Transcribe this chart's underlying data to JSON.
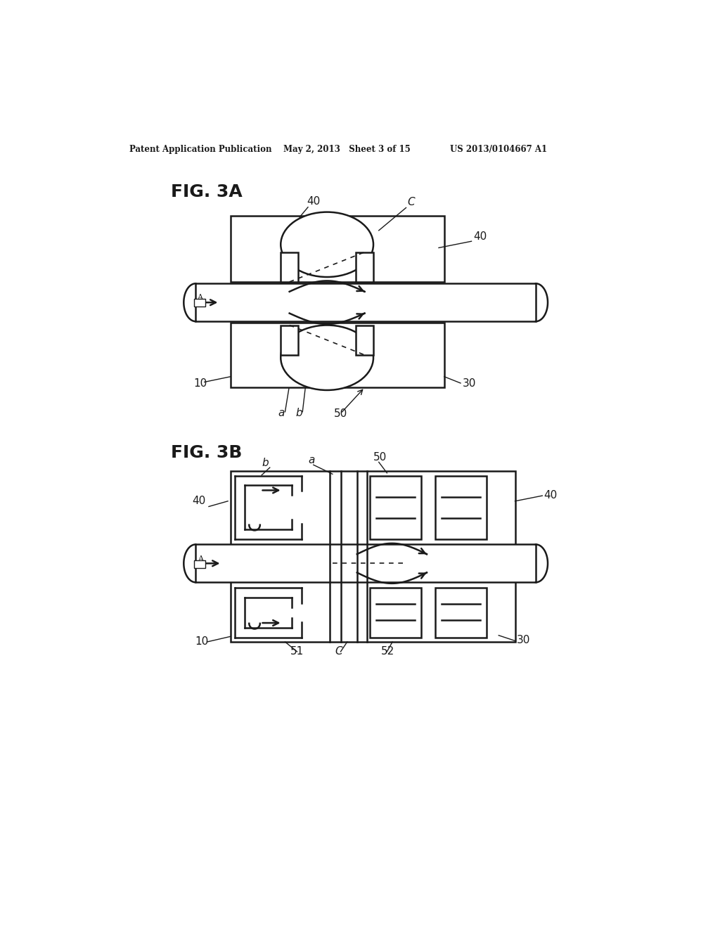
{
  "header_left": "Patent Application Publication",
  "header_mid": "May 2, 2013   Sheet 3 of 15",
  "header_right": "US 2013/0104667 A1",
  "fig3a_label": "FIG. 3A",
  "fig3b_label": "FIG. 3B",
  "bg_color": "#ffffff",
  "line_color": "#1a1a1a",
  "lw": 1.8
}
